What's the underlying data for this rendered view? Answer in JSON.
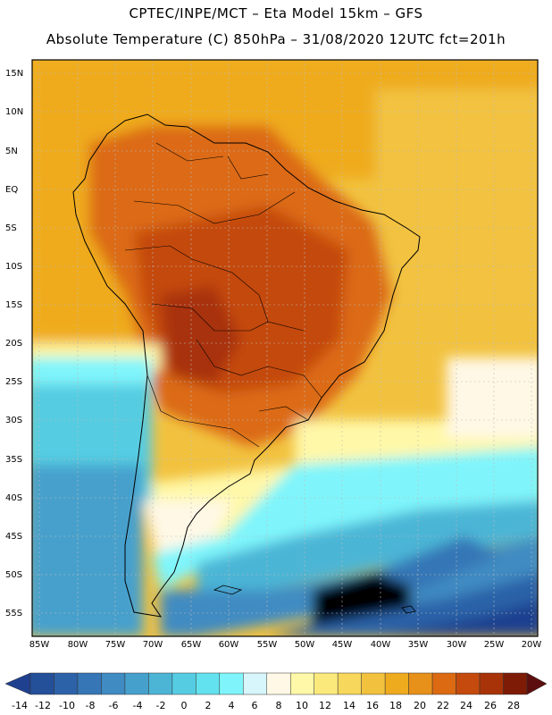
{
  "header": {
    "line1": "CPTEC/INPE/MCT –  Eta Model 15km – GFS",
    "line2": "Absolute Temperature (C) 850hPa – 31/08/2020 12UTC fct=201h"
  },
  "map": {
    "region": "South America",
    "lat_labels": [
      "15N",
      "10N",
      "5N",
      "EQ",
      "5S",
      "10S",
      "15S",
      "20S",
      "25S",
      "30S",
      "35S",
      "40S",
      "45S",
      "50S",
      "55S"
    ],
    "lon_labels": [
      "85W",
      "80W",
      "75W",
      "70W",
      "65W",
      "60W",
      "55W",
      "50W",
      "45W",
      "40W",
      "35W",
      "30W",
      "25W",
      "20W"
    ]
  },
  "colorbar": {
    "labels": [
      "-14",
      "-12",
      "-10",
      "-8",
      "-6",
      "-4",
      "-2",
      "0",
      "2",
      "4",
      "6",
      "8",
      "10",
      "12",
      "14",
      "16",
      "18",
      "20",
      "22",
      "24",
      "26",
      "28"
    ],
    "colors": [
      "#1f3f8f",
      "#24509a",
      "#2c62a8",
      "#3676b6",
      "#3f8bc2",
      "#46a0cc",
      "#4cb5d6",
      "#55cce2",
      "#62e2ee",
      "#7ff5fb",
      "#d6f6fb",
      "#fff8e6",
      "#fff8a8",
      "#fbe97c",
      "#f7d85c",
      "#f2c23f",
      "#efab1e",
      "#e7901a",
      "#dc6a12",
      "#c44a0d",
      "#a83308",
      "#7d1b06",
      "#5c0e0e"
    ]
  }
}
